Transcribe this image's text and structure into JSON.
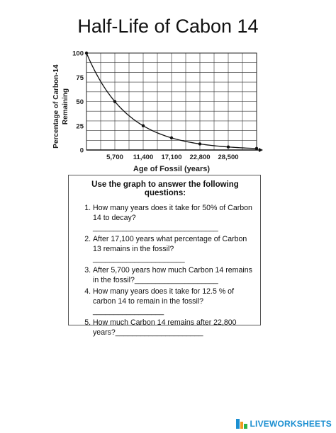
{
  "title": "Half-Life of Cabon 14",
  "chart_data": {
    "type": "line",
    "xlabel": "Age of Fossil (years)",
    "ylabel_lines": [
      "Percentage of Carbon-14",
      "Remaining"
    ],
    "x_ticks": [
      5700,
      11400,
      17100,
      22800,
      28500
    ],
    "x_tick_labels": [
      "5,700",
      "11,400",
      "17,100",
      "22,800",
      "28,500"
    ],
    "y_ticks": [
      0,
      25,
      50,
      75,
      100
    ],
    "y_tick_labels": [
      "0",
      "25",
      "50",
      "75",
      "100"
    ],
    "xlim": [
      0,
      34200
    ],
    "ylim": [
      0,
      100
    ],
    "grid": true,
    "x": [
      0,
      5700,
      11400,
      17100,
      22800,
      28500,
      34200
    ],
    "y": [
      100,
      50,
      25,
      12.5,
      6.25,
      3.125,
      1.5625
    ]
  },
  "questions": {
    "heading": "Use the graph to answer the following questions:",
    "items": [
      "How many years does it take for 50% of Carbon 14 to decay?______________________________",
      "After 17,100 years what percentage of Carbon 13 remains in the fossil?______________________",
      "After 5,700 years how much Carbon 14 remains in the fossil?____________________",
      "How many years does it take for 12.5 % of carbon 14 to remain in the fossil?_________________",
      "How much Carbon 14 remains after 22,800 years?_____________________"
    ]
  },
  "footer": {
    "brand": "LIVEWORKSHEETS"
  }
}
